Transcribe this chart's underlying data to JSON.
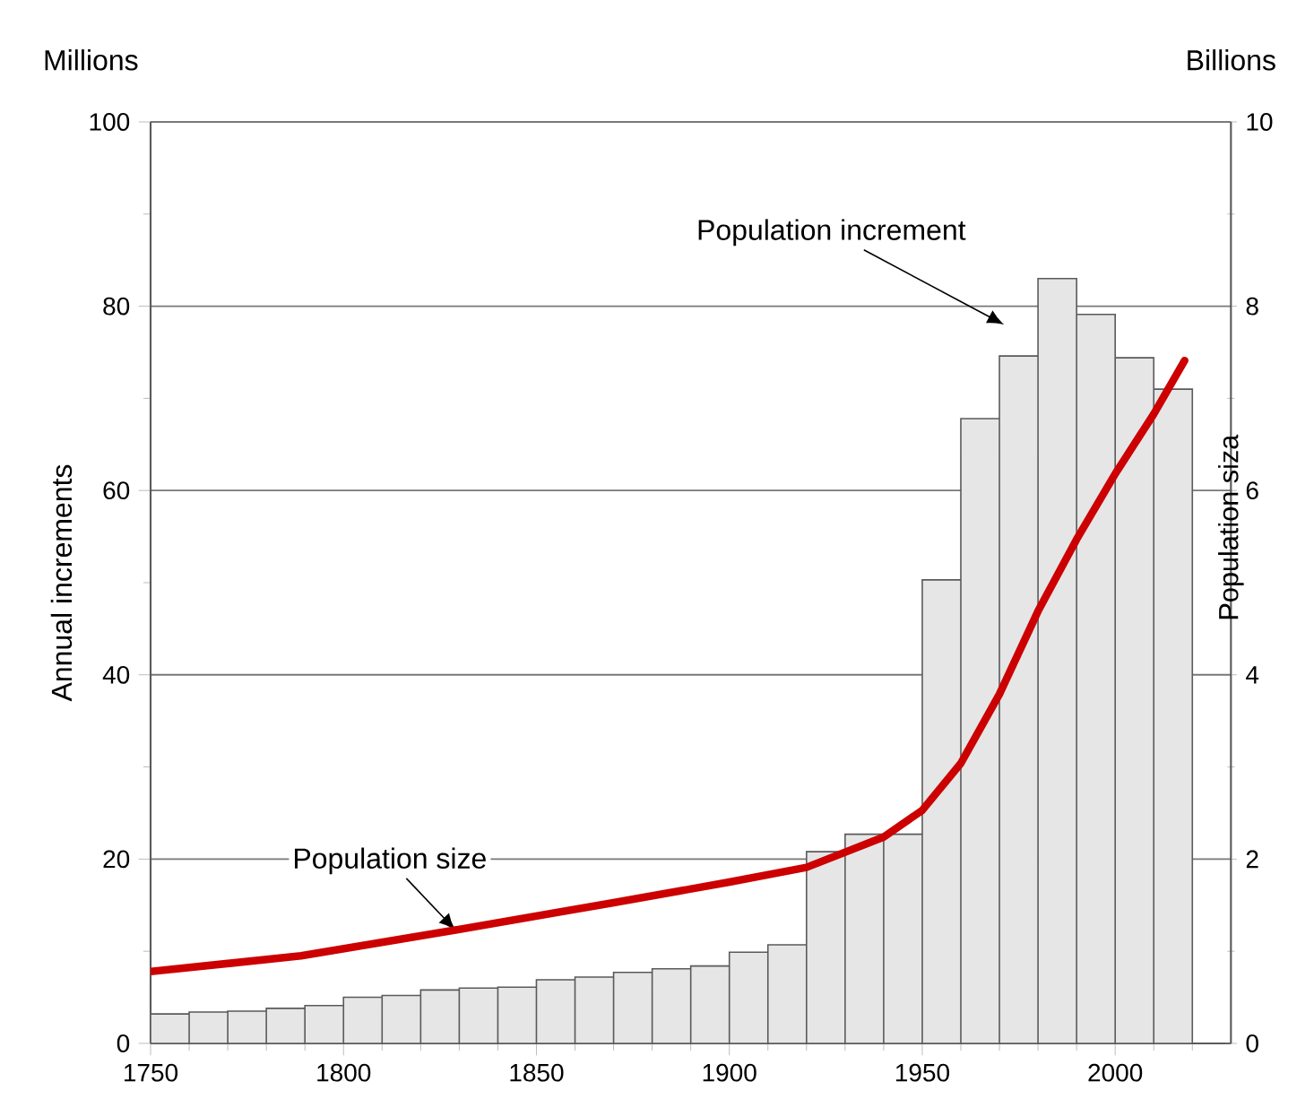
{
  "chart_data": {
    "type": "histogram",
    "ylabel": "Annual increments",
    "y2label": "Population siza",
    "annotations": [
      "Millions",
      "Billions",
      "Population increment",
      {
        "text": "Population size",
        "x": 1829,
        "y": 12.3
      }
    ],
    "xlim": [
      1750,
      2030
    ],
    "xticks": [
      1750,
      {
        "value": 1760,
        "label": null
      },
      {
        "value": 1770,
        "label": null
      },
      {
        "value": 1780,
        "label": null
      },
      {
        "value": 1790,
        "label": null
      },
      1800,
      {
        "value": 1810,
        "label": null
      },
      {
        "value": 1820,
        "label": null
      },
      {
        "value": 1830,
        "label": null
      },
      {
        "value": 1840,
        "label": null
      },
      1850,
      {
        "value": 1860,
        "label": null
      },
      {
        "value": 1870,
        "label": null
      },
      {
        "value": 1880,
        "label": null
      },
      {
        "value": 1890,
        "label": null
      },
      1900,
      {
        "value": 1910,
        "label": null
      },
      {
        "value": 1920,
        "label": null
      },
      {
        "value": 1930,
        "label": null
      },
      {
        "value": 1940,
        "label": null
      },
      1950,
      {
        "value": 1960,
        "label": null
      },
      {
        "value": 1970,
        "label": null
      },
      {
        "value": 1980,
        "label": null
      },
      {
        "value": 1990,
        "label": null
      },
      2000,
      {
        "value": 2010,
        "label": null
      },
      {
        "value": 2020,
        "label": null
      }
    ],
    "ylim": [
      0,
      100
    ],
    "yticks": [
      0,
      {
        "value": 10,
        "label": null
      },
      20,
      {
        "value": 30,
        "label": null
      },
      40,
      {
        "value": 50,
        "label": null
      },
      60,
      {
        "value": 70,
        "label": null
      },
      80,
      {
        "value": 90,
        "label": null
      },
      100
    ],
    "y2lim": [
      0,
      10
    ],
    "y2ticks": [
      0,
      {
        "value": 1,
        "label": null
      },
      2,
      {
        "value": 3,
        "label": null
      },
      4,
      {
        "value": 5,
        "label": null
      },
      6,
      {
        "value": 7,
        "label": null
      },
      8,
      {
        "value": 9,
        "label": null
      },
      10
    ],
    "grid": "y",
    "series": [
      {
        "color": "#e6e6e6",
        "bins": [
          1750,
          1760,
          1770,
          1780,
          1790,
          1800,
          1810,
          1820,
          1830,
          1840,
          1850,
          1860,
          1870,
          1880,
          1890,
          1900,
          1910,
          1920,
          1930,
          1940,
          1950,
          1960,
          1970,
          1980,
          1990,
          2000,
          2010,
          2020
        ],
        "values": [
          3.2,
          3.4,
          3.5,
          3.8,
          4.1,
          5.0,
          5.2,
          5.8,
          6.0,
          6.1,
          6.9,
          7.2,
          7.7,
          8.1,
          8.4,
          9.9,
          10.7,
          20.8,
          22.7,
          22.7,
          50.3,
          67.8,
          74.6,
          83.0,
          79.1,
          74.4,
          71.0
        ]
      },
      {
        "type": "line",
        "axis": "y2",
        "color": "#cc0000",
        "x": [
          1750,
          1789,
          1829,
          1869,
          1900,
          1920,
          1940,
          1950,
          1960,
          1970,
          1980,
          1990,
          2000,
          2010,
          2018
        ],
        "values": [
          0.78,
          0.95,
          1.23,
          1.52,
          1.75,
          1.91,
          2.24,
          2.53,
          3.04,
          3.79,
          4.69,
          5.47,
          6.18,
          6.83,
          7.41
        ]
      }
    ]
  }
}
